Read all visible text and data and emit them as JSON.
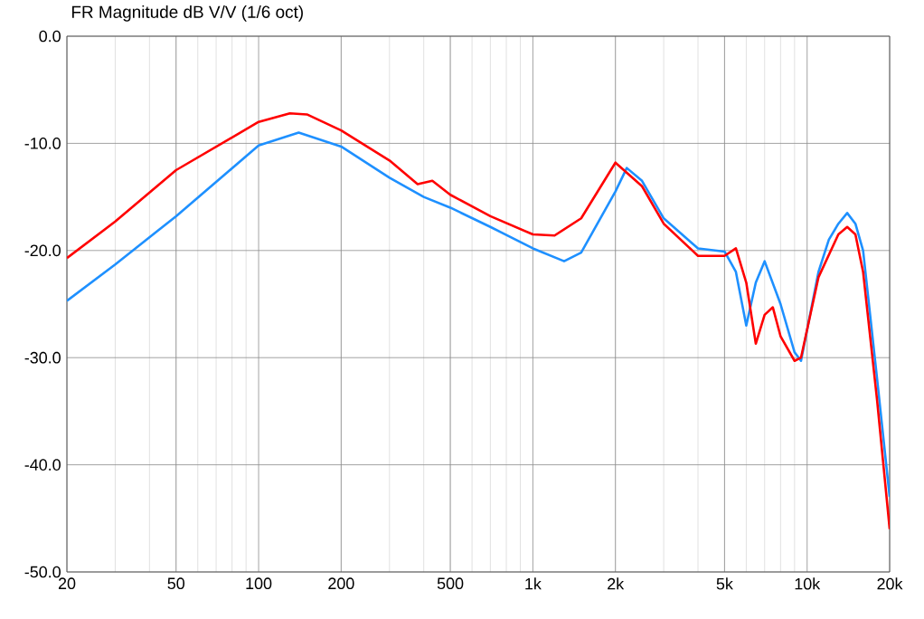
{
  "chart_data": {
    "type": "line",
    "title": "FR Magnitude dB V/V (1/6 oct)",
    "log": "x",
    "grid": true,
    "marker": "none",
    "line_style": "solid",
    "xlim": [
      20,
      20000
    ],
    "ylim": [
      -50,
      0
    ],
    "xticks": [
      20,
      50,
      100,
      200,
      500,
      {
        "value": 1000,
        "label": "1k"
      },
      {
        "value": 2000,
        "label": "2k"
      },
      {
        "value": 5000,
        "label": "5k"
      },
      {
        "value": 10000,
        "label": "10k"
      },
      {
        "value": 20000,
        "label": "20k"
      }
    ],
    "yticks": [
      {
        "value": 0,
        "label": "0.0"
      },
      {
        "value": -10,
        "label": "-10.0"
      },
      {
        "value": -20,
        "label": "-20.0"
      },
      {
        "value": -30,
        "label": "-30.0"
      },
      {
        "value": -40,
        "label": "-40.0"
      },
      {
        "value": -50,
        "label": "-50.0"
      }
    ],
    "series": [
      {
        "color": "#1e90ff",
        "x": [
          20,
          30,
          50,
          100,
          140,
          200,
          300,
          400,
          500,
          700,
          1000,
          1300,
          1500,
          2000,
          2200,
          2500,
          3000,
          4000,
          5000,
          5500,
          6000,
          6500,
          7000,
          8000,
          9000,
          9500,
          11000,
          12000,
          13000,
          14000,
          15000,
          16000,
          18000,
          20000
        ],
        "values": [
          -24.7,
          -21.3,
          -16.8,
          -10.2,
          -9,
          -10.3,
          -13.2,
          -15,
          -16,
          -17.8,
          -19.8,
          -21,
          -20.2,
          -14.5,
          -12.3,
          -13.5,
          -17,
          -19.8,
          -20.1,
          -22,
          -27,
          -23,
          -21,
          -25,
          -29.5,
          -30.3,
          -22,
          -19,
          -17.5,
          -16.5,
          -17.5,
          -20,
          -32,
          -43
        ]
      },
      {
        "color": "#ff0000",
        "x": [
          20,
          30,
          50,
          100,
          130,
          150,
          200,
          300,
          380,
          430,
          500,
          700,
          1000,
          1200,
          1500,
          2000,
          2500,
          3000,
          4000,
          5000,
          5500,
          6000,
          6500,
          7000,
          7500,
          8000,
          9000,
          9500,
          11000,
          13000,
          14000,
          15000,
          16000,
          18000,
          20000
        ],
        "values": [
          -20.7,
          -17.3,
          -12.5,
          -8,
          -7.2,
          -7.3,
          -8.8,
          -11.6,
          -13.8,
          -13.5,
          -14.8,
          -16.8,
          -18.5,
          -18.6,
          -17,
          -11.8,
          -14,
          -17.5,
          -20.5,
          -20.5,
          -19.8,
          -23,
          -28.7,
          -26,
          -25.3,
          -28,
          -30.3,
          -30,
          -22.5,
          -18.5,
          -17.8,
          -18.5,
          -22,
          -34,
          -46
        ]
      }
    ]
  }
}
